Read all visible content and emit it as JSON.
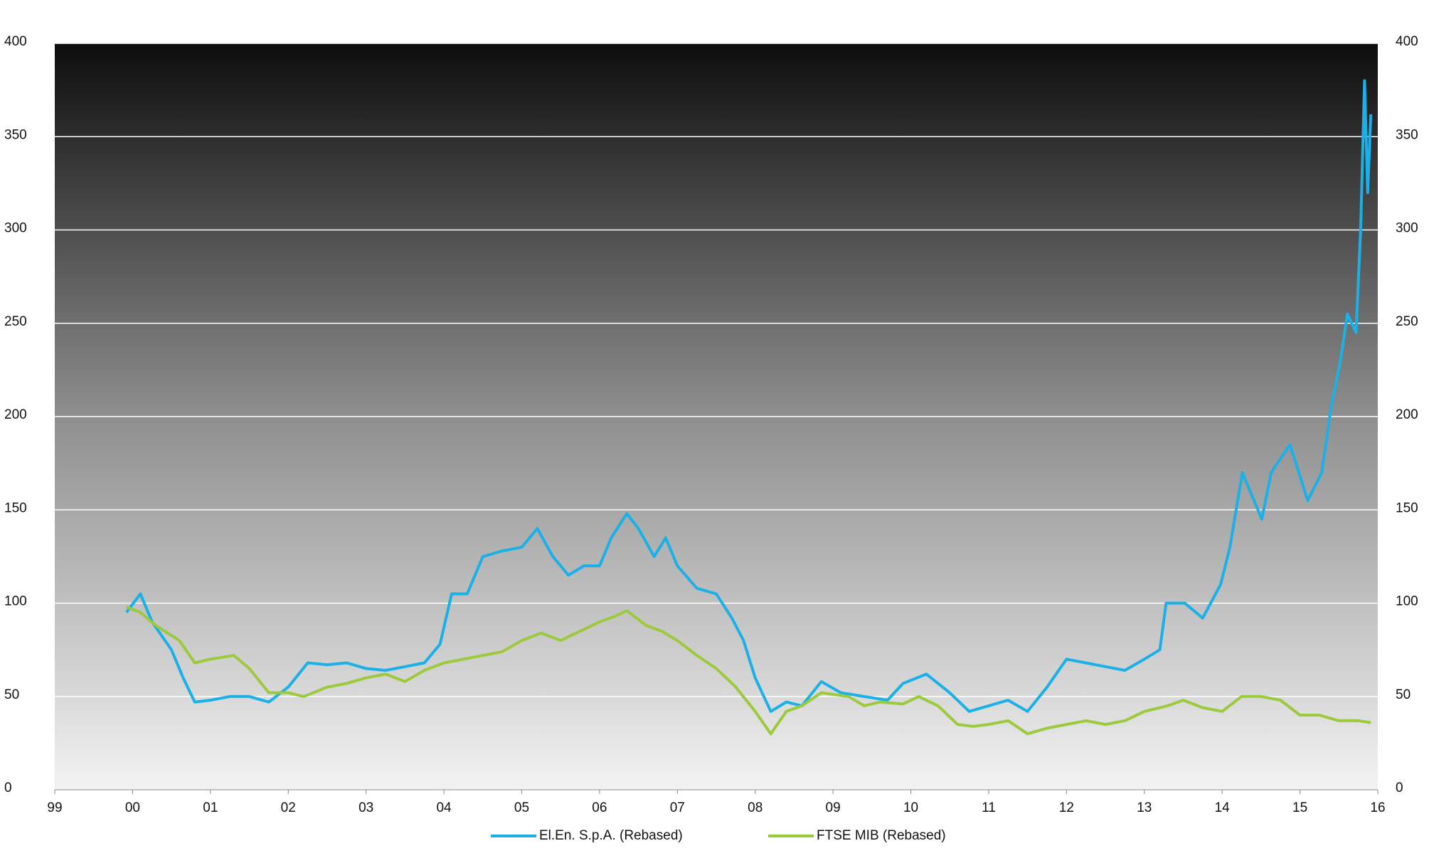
{
  "chart_data": {
    "type": "line",
    "xlim": [
      1999,
      2016
    ],
    "xticks": [
      {
        "value": 1999,
        "label": "99"
      },
      {
        "value": 2000,
        "label": "00"
      },
      {
        "value": 2001,
        "label": "01"
      },
      {
        "value": 2002,
        "label": "02"
      },
      {
        "value": 2003,
        "label": "03"
      },
      {
        "value": 2004,
        "label": "04"
      },
      {
        "value": 2005,
        "label": "05"
      },
      {
        "value": 2006,
        "label": "06"
      },
      {
        "value": 2007,
        "label": "07"
      },
      {
        "value": 2008,
        "label": "08"
      },
      {
        "value": 2009,
        "label": "09"
      },
      {
        "value": 2010,
        "label": "10"
      },
      {
        "value": 2011,
        "label": "11"
      },
      {
        "value": 2012,
        "label": "12"
      },
      {
        "value": 2013,
        "label": "13"
      },
      {
        "value": 2014,
        "label": "14"
      },
      {
        "value": 2015,
        "label": "15"
      },
      {
        "value": 2016,
        "label": "16"
      }
    ],
    "ylim": [
      0,
      400
    ],
    "yticks": [
      0,
      50,
      100,
      150,
      200,
      250,
      300,
      350,
      400
    ],
    "y2lim": [
      0,
      400
    ],
    "y2ticks": [
      0,
      50,
      100,
      150,
      200,
      250,
      300,
      350,
      400
    ],
    "grid": true,
    "legend": "bottom",
    "series": [
      {
        "name": "El.En. S.p.A. (Rebased)",
        "color": "#1ab0e8",
        "x": [
          1999.92,
          2000.1,
          2000.25,
          2000.5,
          2000.65,
          2000.8,
          2001.0,
          2001.25,
          2001.5,
          2001.75,
          2002.0,
          2002.25,
          2002.5,
          2002.75,
          2003.0,
          2003.25,
          2003.5,
          2003.75,
          2003.95,
          2004.1,
          2004.3,
          2004.5,
          2004.75,
          2005.0,
          2005.2,
          2005.4,
          2005.6,
          2005.8,
          2006.0,
          2006.15,
          2006.35,
          2006.5,
          2006.7,
          2006.85,
          2007.0,
          2007.25,
          2007.5,
          2007.7,
          2007.85,
          2008.0,
          2008.2,
          2008.4,
          2008.6,
          2008.85,
          2009.1,
          2009.4,
          2009.7,
          2009.9,
          2010.2,
          2010.5,
          2010.75,
          2011.0,
          2011.25,
          2011.5,
          2011.75,
          2012.0,
          2012.25,
          2012.5,
          2012.75,
          2013.0,
          2013.2,
          2013.28,
          2013.52,
          2013.75,
          2013.98,
          2014.1,
          2014.26,
          2014.51,
          2014.63,
          2014.87,
          2015.1,
          2015.28,
          2015.4,
          2015.52,
          2015.61,
          2015.72,
          2015.78,
          2015.83,
          2015.87,
          2015.91
        ],
        "values": [
          95,
          105,
          90,
          75,
          60,
          47,
          48,
          50,
          50,
          47,
          55,
          68,
          67,
          68,
          65,
          64,
          66,
          68,
          78,
          105,
          105,
          125,
          128,
          130,
          140,
          125,
          115,
          120,
          120,
          135,
          148,
          140,
          125,
          135,
          120,
          108,
          105,
          92,
          80,
          60,
          42,
          47,
          45,
          58,
          52,
          50,
          48,
          57,
          62,
          52,
          42,
          45,
          48,
          42,
          55,
          70,
          68,
          66,
          64,
          70,
          75,
          100,
          100,
          92,
          110,
          130,
          170,
          145,
          170,
          185,
          155,
          170,
          205,
          230,
          255,
          245,
          300,
          380,
          320,
          362
        ]
      },
      {
        "name": "FTSE MIB (Rebased)",
        "color": "#9dc93c",
        "x": [
          1999.92,
          2000.1,
          2000.3,
          2000.6,
          2000.8,
          2001.0,
          2001.3,
          2001.5,
          2001.75,
          2002.0,
          2002.2,
          2002.5,
          2002.75,
          2003.0,
          2003.25,
          2003.5,
          2003.75,
          2004.0,
          2004.25,
          2004.5,
          2004.75,
          2005.0,
          2005.25,
          2005.5,
          2005.75,
          2006.0,
          2006.2,
          2006.35,
          2006.6,
          2006.8,
          2007.0,
          2007.25,
          2007.5,
          2007.75,
          2008.0,
          2008.2,
          2008.4,
          2008.6,
          2008.85,
          2009.2,
          2009.4,
          2009.6,
          2009.9,
          2010.1,
          2010.35,
          2010.6,
          2010.8,
          2011.0,
          2011.25,
          2011.5,
          2011.75,
          2012.0,
          2012.25,
          2012.5,
          2012.75,
          2013.0,
          2013.3,
          2013.5,
          2013.75,
          2014.0,
          2014.25,
          2014.5,
          2014.75,
          2015.0,
          2015.25,
          2015.5,
          2015.75,
          2015.91
        ],
        "values": [
          98,
          95,
          88,
          80,
          68,
          70,
          72,
          65,
          52,
          52,
          50,
          55,
          57,
          60,
          62,
          58,
          64,
          68,
          70,
          72,
          74,
          80,
          84,
          80,
          85,
          90,
          93,
          96,
          88,
          85,
          80,
          72,
          65,
          55,
          42,
          30,
          42,
          45,
          52,
          50,
          45,
          47,
          46,
          50,
          45,
          35,
          34,
          35,
          37,
          30,
          33,
          35,
          37,
          35,
          37,
          42,
          45,
          48,
          44,
          42,
          50,
          50,
          48,
          40,
          40,
          37,
          37,
          36
        ]
      }
    ]
  }
}
